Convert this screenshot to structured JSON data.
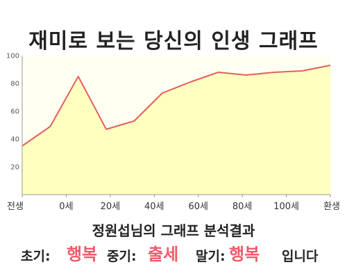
{
  "chart_data": {
    "type": "area",
    "title": "재미로 보는 당신의 인생 그래프",
    "x": [
      0,
      10,
      20,
      30,
      40,
      50,
      60,
      70,
      80,
      90,
      100,
      110
    ],
    "values": [
      35,
      49,
      85,
      47,
      53,
      73,
      81,
      88,
      86,
      88,
      89,
      93
    ],
    "x_tick_labels": [
      "전생",
      "0세",
      "20세",
      "40세",
      "60세",
      "80세",
      "100세",
      "환생"
    ],
    "y_tick_labels": [
      "20",
      "40",
      "60",
      "80",
      "100"
    ],
    "ylim": [
      0,
      100
    ],
    "grid": false,
    "colors": {
      "line": "#e06060",
      "fill": "#ffffc0",
      "plot_bg": "#fffff2"
    }
  },
  "summary": "정원섭님의 그래프 분석결과",
  "result": {
    "early_label": "초기:",
    "early_value": "행복",
    "middle_label": "중기:",
    "middle_value": "출세",
    "late_label": "말기:",
    "late_value": "행복",
    "suffix": "입니다"
  }
}
